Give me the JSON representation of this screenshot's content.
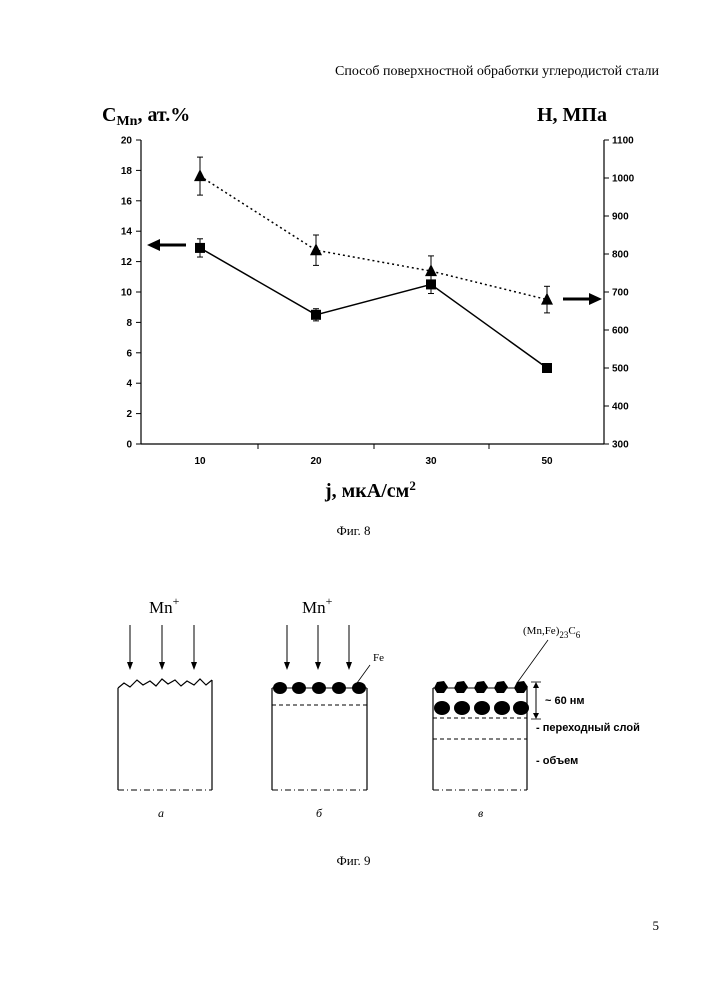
{
  "header": "Способ поверхностной обработки углеродистой стали",
  "fig8_caption": "Фиг. 8",
  "fig9_caption": "Фиг. 9",
  "page_number": "5",
  "chart_data": {
    "type": "line",
    "categories": [
      "10",
      "20",
      "30",
      "50"
    ],
    "xlabel_main": "j, мкА/см",
    "xlabel_sup": "2",
    "ylabel_left_main": "C",
    "ylabel_left_sub": "Mn",
    "ylabel_left_rest": ", ат.%",
    "ylabel_right": "H, МПа",
    "ylim_left": [
      0,
      20
    ],
    "ylim_right": [
      300,
      1100
    ],
    "left_ticks": [
      "0",
      "2",
      "4",
      "6",
      "8",
      "10",
      "12",
      "14",
      "16",
      "18",
      "20"
    ],
    "right_ticks": [
      "300",
      "400",
      "500",
      "600",
      "700",
      "800",
      "900",
      "1000",
      "1100"
    ],
    "series": [
      {
        "marker": "square",
        "line": "solid",
        "axis": "left",
        "values": [
          12.9,
          8.5,
          10.5,
          5.0
        ],
        "errors": [
          0.6,
          0.4,
          0.6,
          0
        ]
      },
      {
        "marker": "triangle",
        "line": "dotted",
        "axis": "right",
        "values": [
          1005,
          810,
          755,
          680
        ],
        "errors": [
          50,
          40,
          40,
          35
        ]
      }
    ]
  },
  "fig9": {
    "ion_label": "Mn",
    "ion_sup": "+",
    "fe_label": "Fe",
    "carbide_base": "(Mn,Fe)",
    "carbide_sub1": "23",
    "carbide_mid": "C",
    "carbide_sub2": "6",
    "thickness_label": "~ 60 нм",
    "transition_label": "- переходный слой",
    "bulk_label": "- объем",
    "panel_labels": [
      "а",
      "б",
      "в"
    ]
  }
}
